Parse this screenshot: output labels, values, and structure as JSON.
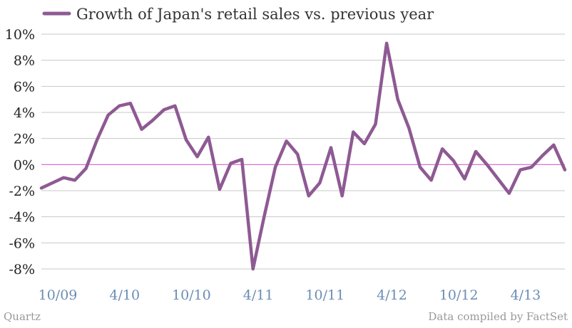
{
  "chart_data": {
    "type": "line",
    "series": [
      {
        "name": "Growth of Japan's retail sales vs. previous year",
        "color": "#8e5a93",
        "values": [
          -1.8,
          -1.4,
          -1.0,
          -1.2,
          -0.3,
          1.9,
          3.8,
          4.5,
          4.7,
          2.7,
          3.4,
          4.2,
          4.5,
          1.9,
          0.6,
          2.1,
          -1.9,
          0.1,
          0.4,
          -8.0,
          -4.0,
          -0.2,
          1.8,
          0.8,
          -2.4,
          -1.4,
          1.3,
          -2.4,
          2.5,
          1.6,
          3.1,
          9.3,
          5.0,
          2.8,
          -0.2,
          -1.2,
          1.2,
          0.3,
          -1.1,
          1.0,
          0.0,
          -1.1,
          -2.2,
          -0.4,
          -0.2,
          0.7,
          1.5,
          -0.4
        ]
      }
    ],
    "x_tick_labels": [
      "10/09",
      "4/10",
      "10/10",
      "4/11",
      "10/11",
      "4/12",
      "10/12",
      "4/13"
    ],
    "x_tick_index": [
      0,
      6,
      12,
      18,
      24,
      30,
      36,
      42
    ],
    "y_tick_labels": [
      "10%",
      "8%",
      "6%",
      "4%",
      "2%",
      "0%",
      "-2%",
      "-4%",
      "-6%",
      "-8%"
    ],
    "ylim": [
      -8,
      10
    ],
    "ystep": 2,
    "grid": true,
    "legend_position": "top-left",
    "zero_line_color": "#d45fd4",
    "grid_color": "#c8c8c8"
  },
  "footer": {
    "source_left": "Quartz",
    "source_right": "Data compiled by FactSet"
  }
}
